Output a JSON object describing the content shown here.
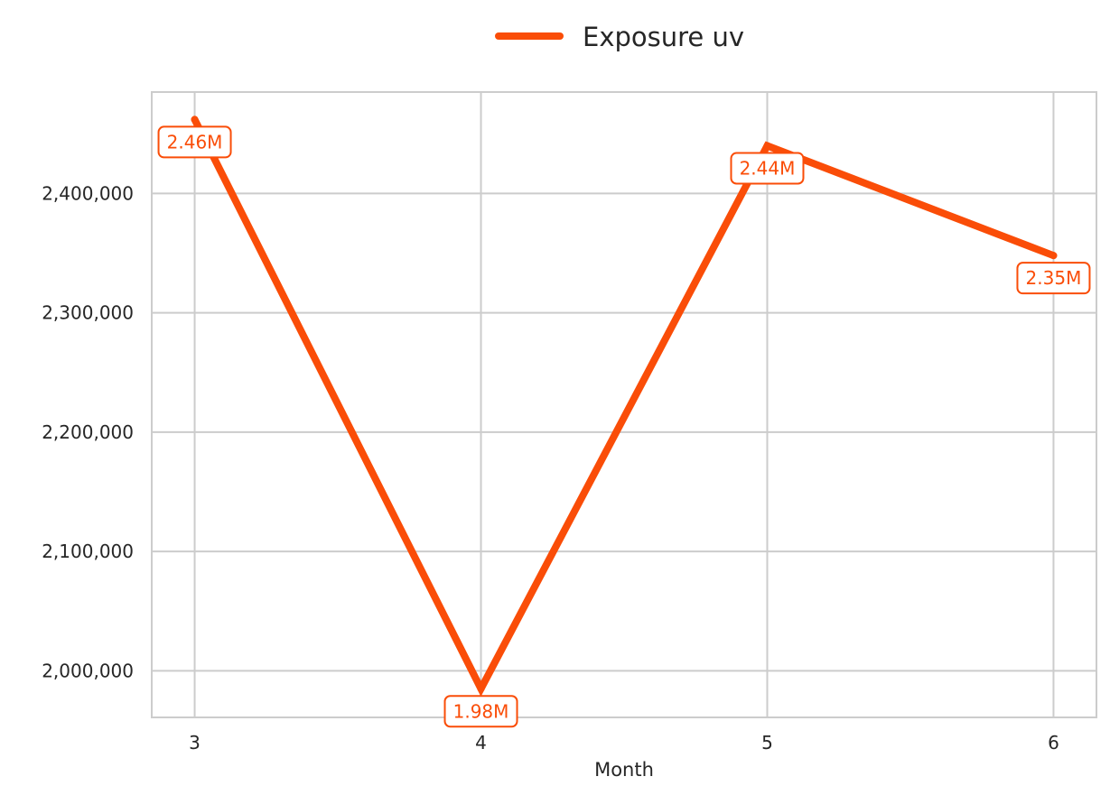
{
  "chart_data": {
    "type": "line",
    "title": "",
    "xlabel": "Month",
    "ylabel": "",
    "x": [
      3,
      4,
      5,
      6
    ],
    "x_tick_labels": [
      "3",
      "4",
      "5",
      "6"
    ],
    "y_ticks": [
      2000000,
      2100000,
      2200000,
      2300000,
      2400000
    ],
    "y_tick_labels": [
      "2,000,000",
      "2,100,000",
      "2,200,000",
      "2,300,000",
      "2,400,000"
    ],
    "ylim": [
      1961000,
      2485000
    ],
    "xlim": [
      2.85,
      6.15
    ],
    "grid": true,
    "legend_position": "top-center",
    "series": [
      {
        "name": "Exposure uv",
        "color": "#fa4d08",
        "values": [
          2462000,
          1985000,
          2440000,
          2348000
        ],
        "data_labels": [
          "2.46M",
          "1.98M",
          "2.44M",
          "2.35M"
        ]
      }
    ]
  }
}
